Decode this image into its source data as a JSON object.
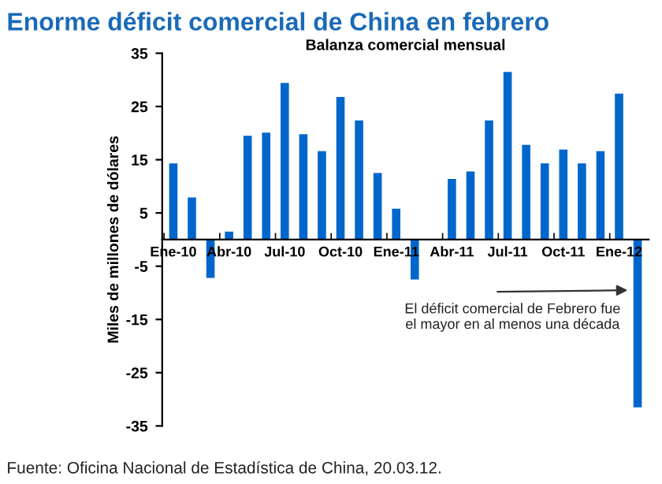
{
  "chart_data": {
    "type": "bar",
    "title": "Enorme déficit comercial de China en febrero",
    "subtitle": "Balanza comercial mensual",
    "ylabel": "Miles de millones de dólares",
    "categories": [
      "Ene-10",
      null,
      null,
      "Abr-10",
      null,
      null,
      "Jul-10",
      null,
      null,
      "Oct-10",
      null,
      null,
      "Ene-11",
      null,
      null,
      "Abr-11",
      null,
      null,
      "Jul-11",
      null,
      null,
      "Oct-11",
      null,
      null,
      "Ene-12",
      null
    ],
    "values": [
      14.3,
      7.9,
      -7.2,
      1.5,
      19.5,
      20.1,
      29.4,
      19.8,
      16.6,
      26.8,
      22.4,
      12.5,
      5.8,
      -7.5,
      null,
      11.4,
      12.8,
      22.4,
      31.5,
      17.8,
      14.3,
      16.9,
      14.3,
      16.6,
      27.4,
      -31.5
    ],
    "color": "#0066cc",
    "ylim": [
      -35,
      35
    ],
    "yticks": [
      -35,
      -25,
      -15,
      -5,
      5,
      15,
      25,
      35
    ],
    "grid": false,
    "annotations": [
      "El déficit comercial de Febrero fue\nel mayor en al menos una década",
      "Fuente: Oficina Nacional de Estadística de China, 20.03.12."
    ]
  }
}
